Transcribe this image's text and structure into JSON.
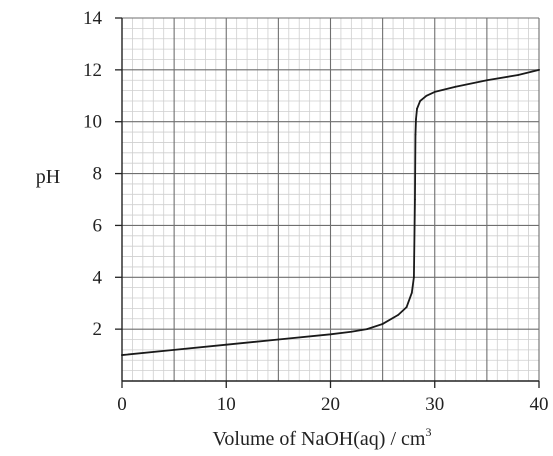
{
  "chart_data": {
    "type": "line",
    "title": "",
    "xlabel": "Volume of NaOH(aq) / cm",
    "xlabel_superscript": "3",
    "ylabel": "pH",
    "xlim": [
      0,
      40
    ],
    "ylim": [
      0,
      14
    ],
    "x_ticks": [
      0,
      10,
      20,
      30,
      40
    ],
    "x_tick_labels": [
      "0",
      "10",
      "20",
      "30",
      "40"
    ],
    "y_ticks": [
      2,
      4,
      6,
      8,
      10,
      12,
      14
    ],
    "y_tick_labels": [
      "2",
      "4",
      "6",
      "8",
      "10",
      "12",
      "14"
    ],
    "grid": "on (major every 5 cm3 and 2 pH, minor every 1 cm3 and 0.4 pH)",
    "series": [
      {
        "x": [
          0,
          5,
          10,
          15,
          20,
          22,
          23.5,
          25,
          26.5,
          27.3,
          27.8,
          28.0,
          28.1,
          28.15,
          28.2,
          28.3,
          28.6,
          29.2,
          30,
          32,
          35,
          38,
          40
        ],
        "y": [
          1.0,
          1.2,
          1.4,
          1.6,
          1.8,
          1.9,
          2.0,
          2.2,
          2.55,
          2.85,
          3.4,
          4.0,
          7.0,
          9.5,
          10.1,
          10.5,
          10.8,
          11.0,
          11.15,
          11.35,
          11.6,
          11.8,
          12.0
        ]
      }
    ],
    "colors": {
      "curve": "#1a1a1a",
      "grid_major": "#6f6f6f",
      "grid_minor": "#cfcfcf",
      "axis": "#222222"
    }
  }
}
